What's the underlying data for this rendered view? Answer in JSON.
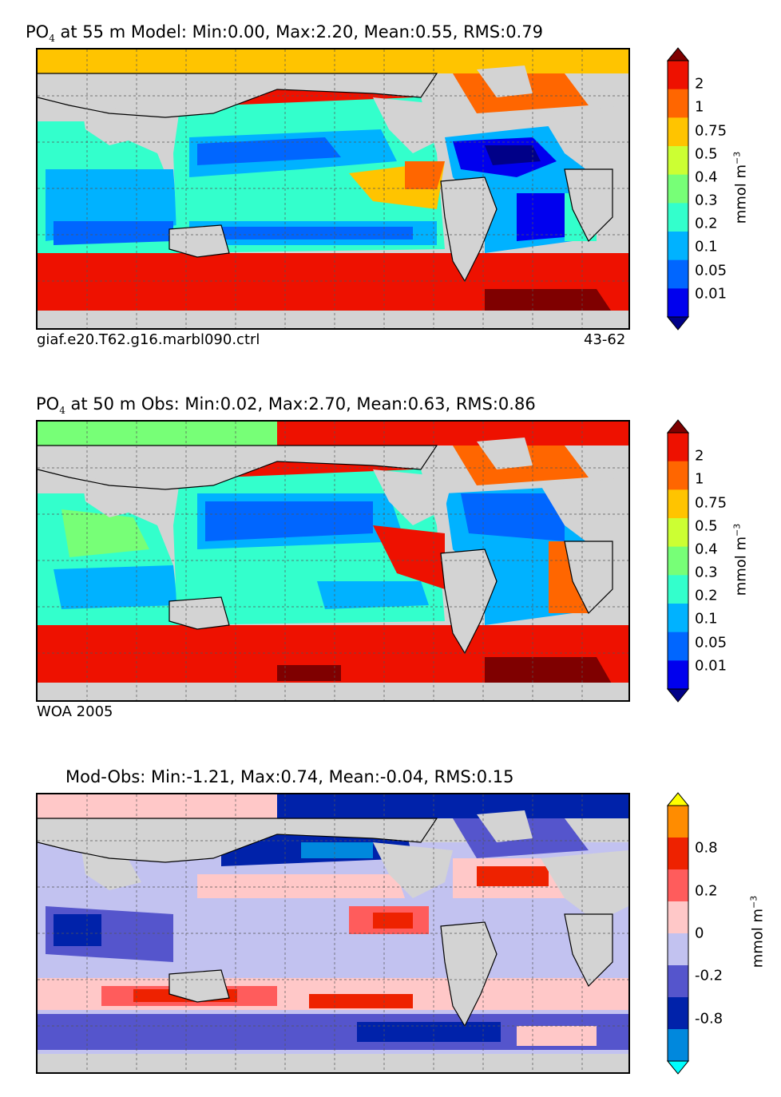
{
  "panels": [
    {
      "title_prefix": "PO",
      "title_sub": "4",
      "title_rest": " at 55 m Model: Min:0.00, Max:2.20, Mean:0.55, RMS:0.79",
      "caption_left": "giaf.e20.T62.g16.marbl090.ctrl",
      "caption_right": "43-62"
    },
    {
      "title_prefix": "PO",
      "title_sub": "4",
      "title_rest": " at 50 m Obs: Min:0.02, Max:2.70, Mean:0.63, RMS:0.86",
      "caption_left": "WOA 2005",
      "caption_right": ""
    },
    {
      "title_prefix": "",
      "title_sub": "",
      "title_rest": "Mod-Obs: Min:-1.21, Max:0.74, Mean:-0.04, RMS:0.15",
      "caption_left": "",
      "caption_right": ""
    }
  ],
  "colorbars": {
    "po4": {
      "units_base": "mmol m",
      "units_exp": "−3",
      "labels": [
        "2",
        "1",
        "0.75",
        "0.5",
        "0.4",
        "0.3",
        "0.2",
        "0.1",
        "0.05",
        "0.01"
      ],
      "colors": [
        "#7f0000",
        "#ee1100",
        "#ff6600",
        "#ffc400",
        "#ccff33",
        "#77ff77",
        "#33ffcc",
        "#00b2ff",
        "#0066ff",
        "#0000ee",
        "#000088"
      ]
    },
    "diff": {
      "units_base": "mmol m",
      "units_exp": "−3",
      "labels": [
        "0.8",
        "0.2",
        "0",
        "-0.2",
        "-0.8"
      ],
      "colors": [
        "#ffff00",
        "#ff8c00",
        "#ee2200",
        "#ff5c5c",
        "#ffc8c8",
        "#c2c2f0",
        "#5555cc",
        "#0022aa",
        "#0088dd",
        "#00ffff"
      ]
    }
  },
  "map_colors": {
    "land": "#d3d3d3",
    "coast": "#000000",
    "grid": "#555555"
  }
}
